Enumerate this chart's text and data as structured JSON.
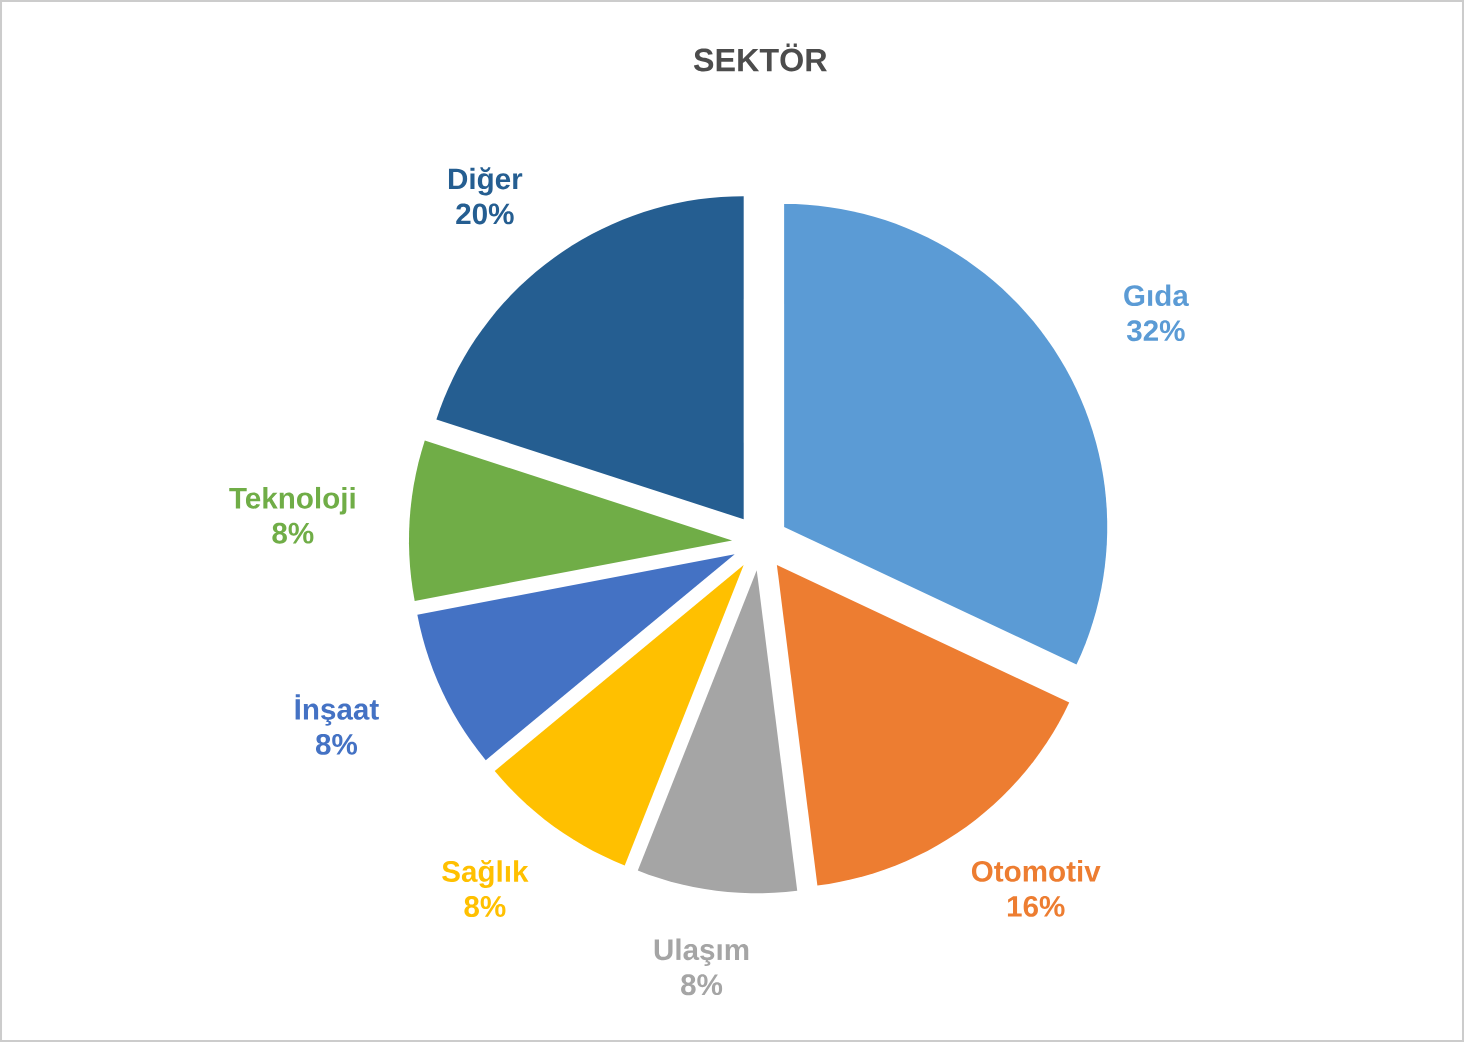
{
  "chart_data": {
    "type": "pie",
    "title": "SEKTÖR",
    "categories": [
      "Gıda",
      "Otomotiv",
      "Ulaşım",
      "Sağlık",
      "İnşaat",
      "Teknoloji",
      "Diğer"
    ],
    "values": [
      32,
      16,
      8,
      8,
      8,
      8,
      20
    ],
    "value_labels": [
      "32%",
      "16%",
      "8%",
      "8%",
      "8%",
      "8%",
      "20%"
    ],
    "colors": [
      "#5b9bd5",
      "#ed7d31",
      "#a5a5a5",
      "#ffc000",
      "#4472c4",
      "#70ad47",
      "#255e91"
    ],
    "legend": false
  }
}
